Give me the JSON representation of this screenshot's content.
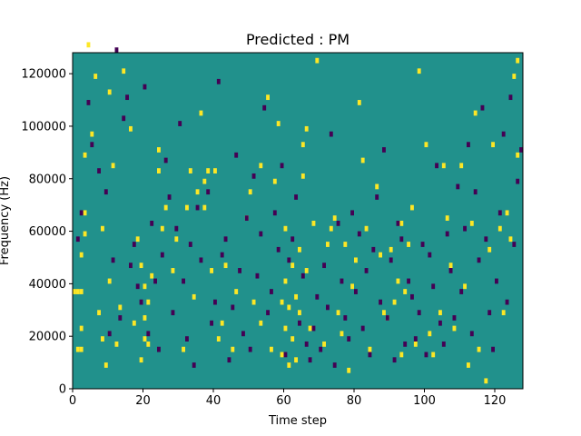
{
  "chart_data": {
    "type": "heatmap",
    "title": "Predicted : PM",
    "xlabel": "Time step",
    "ylabel": "Frequency (Hz)",
    "xlim": [
      0,
      128
    ],
    "ylim": [
      0,
      128000
    ],
    "x_ticks": [
      0,
      20,
      40,
      60,
      80,
      100,
      120
    ],
    "y_ticks": [
      0,
      20000,
      40000,
      60000,
      80000,
      100000,
      120000
    ],
    "x_tick_labels": [
      "0",
      "20",
      "40",
      "60",
      "80",
      "100",
      "120"
    ],
    "y_tick_labels": [
      "0",
      "20000",
      "40000",
      "60000",
      "80000",
      "100000",
      "120000"
    ],
    "n_time": 128,
    "n_freq": 64,
    "freq_bin_hz": 2000,
    "colors": {
      "background_value": "#21918c",
      "low_value": "#440154",
      "high_value": "#fde725"
    },
    "high_cells": [
      [
        0,
        36
      ],
      [
        1,
        36
      ],
      [
        2,
        36
      ],
      [
        1,
        14
      ],
      [
        2,
        14
      ],
      [
        2,
        22
      ],
      [
        2,
        50
      ],
      [
        3,
        66
      ],
      [
        3,
        58
      ],
      [
        3,
        88
      ],
      [
        4,
        130
      ],
      [
        5,
        96
      ],
      [
        6,
        118
      ],
      [
        7,
        28
      ],
      [
        8,
        18
      ],
      [
        8,
        60
      ],
      [
        9,
        8
      ],
      [
        10,
        40
      ],
      [
        10,
        112
      ],
      [
        11,
        84
      ],
      [
        12,
        16
      ],
      [
        13,
        30
      ],
      [
        14,
        120
      ],
      [
        16,
        98
      ],
      [
        17,
        24
      ],
      [
        18,
        56
      ],
      [
        19,
        10
      ],
      [
        19,
        46
      ],
      [
        20,
        38
      ],
      [
        20,
        26
      ],
      [
        20,
        18
      ],
      [
        21,
        16
      ],
      [
        21,
        32
      ],
      [
        22,
        42
      ],
      [
        24,
        82
      ],
      [
        24,
        90
      ],
      [
        25,
        60
      ],
      [
        26,
        68
      ],
      [
        28,
        44
      ],
      [
        29,
        56
      ],
      [
        31,
        14
      ],
      [
        32,
        68
      ],
      [
        33,
        82
      ],
      [
        34,
        34
      ],
      [
        35,
        74
      ],
      [
        36,
        104
      ],
      [
        37,
        78
      ],
      [
        37,
        68
      ],
      [
        38,
        82
      ],
      [
        39,
        44
      ],
      [
        40,
        82
      ],
      [
        41,
        18
      ],
      [
        42,
        24
      ],
      [
        43,
        46
      ],
      [
        45,
        14
      ],
      [
        46,
        36
      ],
      [
        49,
        64
      ],
      [
        50,
        74
      ],
      [
        51,
        32
      ],
      [
        53,
        24
      ],
      [
        53,
        84
      ],
      [
        55,
        110
      ],
      [
        56,
        14
      ],
      [
        57,
        78
      ],
      [
        58,
        100
      ],
      [
        59,
        12
      ],
      [
        59,
        32
      ],
      [
        60,
        22
      ],
      [
        60,
        40
      ],
      [
        60,
        60
      ],
      [
        61,
        8
      ],
      [
        61,
        30
      ],
      [
        62,
        18
      ],
      [
        62,
        46
      ],
      [
        63,
        10
      ],
      [
        63,
        34
      ],
      [
        64,
        28
      ],
      [
        64,
        52
      ],
      [
        65,
        80
      ],
      [
        65,
        92
      ],
      [
        66,
        98
      ],
      [
        66,
        44
      ],
      [
        67,
        22
      ],
      [
        68,
        62
      ],
      [
        69,
        124
      ],
      [
        71,
        16
      ],
      [
        72,
        54
      ],
      [
        73,
        60
      ],
      [
        74,
        64
      ],
      [
        75,
        28
      ],
      [
        76,
        20
      ],
      [
        77,
        54
      ],
      [
        78,
        6
      ],
      [
        79,
        38
      ],
      [
        80,
        48
      ],
      [
        81,
        108
      ],
      [
        82,
        86
      ],
      [
        83,
        60
      ],
      [
        84,
        14
      ],
      [
        86,
        76
      ],
      [
        87,
        50
      ],
      [
        88,
        28
      ],
      [
        89,
        26
      ],
      [
        90,
        52
      ],
      [
        91,
        32
      ],
      [
        92,
        40
      ],
      [
        93,
        12
      ],
      [
        93,
        62
      ],
      [
        94,
        36
      ],
      [
        95,
        54
      ],
      [
        96,
        68
      ],
      [
        97,
        16
      ],
      [
        98,
        120
      ],
      [
        100,
        92
      ],
      [
        101,
        20
      ],
      [
        102,
        12
      ],
      [
        104,
        28
      ],
      [
        105,
        84
      ],
      [
        106,
        64
      ],
      [
        107,
        46
      ],
      [
        108,
        22
      ],
      [
        110,
        84
      ],
      [
        111,
        38
      ],
      [
        112,
        8
      ],
      [
        113,
        62
      ],
      [
        114,
        104
      ],
      [
        115,
        14
      ],
      [
        117,
        2
      ],
      [
        118,
        52
      ],
      [
        119,
        92
      ],
      [
        121,
        60
      ],
      [
        122,
        28
      ],
      [
        123,
        66
      ],
      [
        124,
        56
      ],
      [
        125,
        118
      ],
      [
        126,
        124
      ],
      [
        126,
        88
      ]
    ],
    "low_cells": [
      [
        1,
        56
      ],
      [
        2,
        66
      ],
      [
        4,
        108
      ],
      [
        5,
        92
      ],
      [
        7,
        82
      ],
      [
        9,
        74
      ],
      [
        10,
        20
      ],
      [
        11,
        48
      ],
      [
        12,
        128
      ],
      [
        13,
        26
      ],
      [
        14,
        102
      ],
      [
        15,
        110
      ],
      [
        16,
        46
      ],
      [
        17,
        54
      ],
      [
        18,
        38
      ],
      [
        19,
        32
      ],
      [
        20,
        114
      ],
      [
        21,
        20
      ],
      [
        22,
        62
      ],
      [
        23,
        40
      ],
      [
        24,
        14
      ],
      [
        25,
        50
      ],
      [
        26,
        86
      ],
      [
        27,
        72
      ],
      [
        28,
        28
      ],
      [
        29,
        60
      ],
      [
        30,
        100
      ],
      [
        31,
        40
      ],
      [
        32,
        18
      ],
      [
        33,
        54
      ],
      [
        34,
        8
      ],
      [
        35,
        68
      ],
      [
        36,
        48
      ],
      [
        38,
        74
      ],
      [
        39,
        24
      ],
      [
        40,
        32
      ],
      [
        41,
        116
      ],
      [
        42,
        50
      ],
      [
        43,
        56
      ],
      [
        44,
        10
      ],
      [
        45,
        30
      ],
      [
        46,
        88
      ],
      [
        47,
        44
      ],
      [
        48,
        20
      ],
      [
        49,
        64
      ],
      [
        50,
        14
      ],
      [
        51,
        80
      ],
      [
        52,
        42
      ],
      [
        53,
        58
      ],
      [
        54,
        106
      ],
      [
        55,
        28
      ],
      [
        56,
        36
      ],
      [
        57,
        66
      ],
      [
        58,
        52
      ],
      [
        59,
        84
      ],
      [
        60,
        12
      ],
      [
        61,
        48
      ],
      [
        62,
        56
      ],
      [
        63,
        72
      ],
      [
        64,
        24
      ],
      [
        65,
        42
      ],
      [
        66,
        16
      ],
      [
        67,
        10
      ],
      [
        68,
        22
      ],
      [
        69,
        34
      ],
      [
        70,
        14
      ],
      [
        71,
        46
      ],
      [
        72,
        30
      ],
      [
        73,
        96
      ],
      [
        74,
        8
      ],
      [
        75,
        62
      ],
      [
        76,
        40
      ],
      [
        77,
        26
      ],
      [
        78,
        18
      ],
      [
        79,
        66
      ],
      [
        80,
        36
      ],
      [
        81,
        58
      ],
      [
        82,
        22
      ],
      [
        83,
        44
      ],
      [
        84,
        12
      ],
      [
        85,
        52
      ],
      [
        86,
        72
      ],
      [
        87,
        32
      ],
      [
        88,
        90
      ],
      [
        89,
        26
      ],
      [
        90,
        48
      ],
      [
        91,
        10
      ],
      [
        92,
        62
      ],
      [
        93,
        56
      ],
      [
        94,
        16
      ],
      [
        95,
        40
      ],
      [
        96,
        34
      ],
      [
        97,
        18
      ],
      [
        98,
        28
      ],
      [
        99,
        54
      ],
      [
        100,
        12
      ],
      [
        101,
        50
      ],
      [
        102,
        38
      ],
      [
        103,
        84
      ],
      [
        104,
        24
      ],
      [
        105,
        16
      ],
      [
        106,
        58
      ],
      [
        107,
        44
      ],
      [
        108,
        26
      ],
      [
        109,
        76
      ],
      [
        110,
        36
      ],
      [
        111,
        60
      ],
      [
        112,
        92
      ],
      [
        113,
        20
      ],
      [
        114,
        74
      ],
      [
        115,
        48
      ],
      [
        116,
        106
      ],
      [
        117,
        56
      ],
      [
        118,
        28
      ],
      [
        119,
        14
      ],
      [
        120,
        40
      ],
      [
        121,
        66
      ],
      [
        122,
        96
      ],
      [
        123,
        32
      ],
      [
        124,
        110
      ],
      [
        125,
        54
      ],
      [
        126,
        78
      ],
      [
        127,
        90
      ]
    ]
  }
}
